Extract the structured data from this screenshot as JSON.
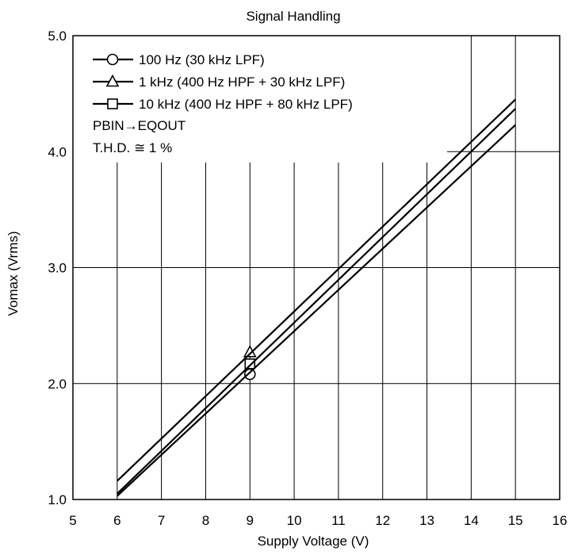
{
  "chart_data": {
    "type": "line",
    "title": "Signal Handling",
    "xlabel": "Supply Voltage  (V)",
    "ylabel": "Vomax  (Vrms)",
    "xlim": [
      5,
      16
    ],
    "ylim": [
      1.0,
      5.0
    ],
    "x_ticks": [
      "5",
      "6",
      "7",
      "8",
      "9",
      "10",
      "11",
      "12",
      "13",
      "14",
      "15",
      "16"
    ],
    "y_ticks": [
      "1.0",
      "2.0",
      "3.0",
      "4.0",
      "5.0"
    ],
    "grid": true,
    "legend_position": "top-left",
    "series": [
      {
        "name": "100 Hz (30 kHz LPF)",
        "marker": "circle",
        "x": [
          6,
          15
        ],
        "y": [
          1.03,
          4.23
        ],
        "marker_point": [
          9,
          2.08
        ]
      },
      {
        "name": "1 kHz (400 Hz HPF + 30 kHz LPF)",
        "marker": "triangle",
        "x": [
          6,
          15
        ],
        "y": [
          1.16,
          4.45
        ],
        "marker_point": [
          9,
          2.27
        ]
      },
      {
        "name": "10 kHz (400 Hz HPF + 80 kHz LPF)",
        "marker": "square",
        "x": [
          6,
          15
        ],
        "y": [
          1.05,
          4.37
        ],
        "marker_point": [
          9,
          2.17
        ]
      }
    ],
    "annotations": [
      "PBIN→EQOUT",
      "T.H.D. ≅ 1 %"
    ]
  }
}
